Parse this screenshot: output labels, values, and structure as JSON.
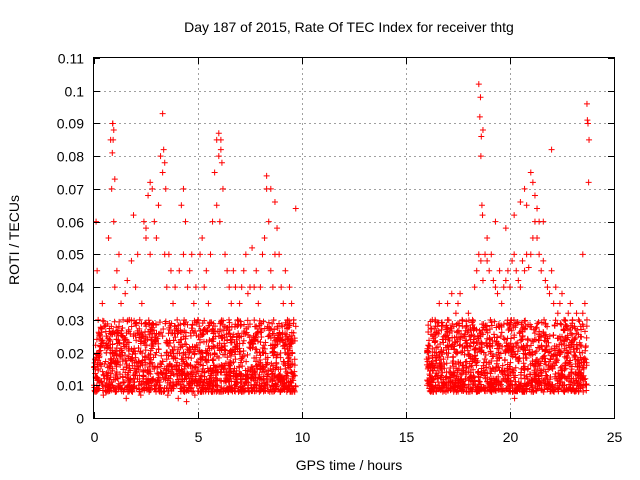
{
  "chart_data": {
    "type": "scatter",
    "title": "Day 187 of 2015, Rate Of TEC Index for receiver thtg",
    "xlabel": "GPS time / hours",
    "ylabel": "ROTI / TECUs",
    "xlim": [
      0,
      25
    ],
    "ylim": [
      0,
      0.11
    ],
    "xticks": [
      0,
      5,
      10,
      15,
      20,
      25
    ],
    "xtick_labels": [
      "0",
      "5",
      "10",
      "15",
      "20",
      "25"
    ],
    "yticks": [
      0,
      0.01,
      0.02,
      0.03,
      0.04,
      0.05,
      0.06,
      0.07,
      0.08,
      0.09,
      0.1,
      0.11
    ],
    "ytick_labels": [
      "0",
      "0.01",
      "0.02",
      "0.03",
      "0.04",
      "0.05",
      "0.06",
      "0.07",
      "0.08",
      "0.09",
      "0.1",
      "0.11"
    ],
    "grid": true,
    "marker": "+",
    "series": [
      {
        "name": "ROTI",
        "color": "#ff0000",
        "x": [
          0.05,
          0.1,
          0.15,
          0.2,
          0.3,
          0.4,
          0.5,
          0.6,
          0.7,
          0.8,
          0.85,
          0.9,
          0.95,
          1.0,
          1.1,
          1.2,
          1.3,
          1.4,
          1.5,
          1.6,
          1.7,
          1.8,
          1.9,
          2.0,
          2.1,
          2.2,
          2.3,
          2.4,
          2.5,
          2.6,
          2.7,
          2.8,
          2.9,
          3.0,
          3.1,
          3.2,
          3.3,
          3.4,
          3.5,
          3.6,
          3.7,
          3.8,
          3.9,
          4.0,
          4.1,
          4.2,
          4.3,
          4.4,
          4.5,
          4.6,
          4.7,
          4.8,
          4.9,
          5.0,
          5.1,
          5.2,
          5.3,
          5.4,
          5.5,
          5.6,
          5.7,
          5.8,
          5.9,
          6.0,
          6.1,
          6.2,
          6.3,
          6.4,
          6.5,
          6.6,
          6.7,
          6.8,
          6.9,
          7.0,
          7.1,
          7.2,
          7.3,
          7.4,
          7.5,
          7.6,
          7.7,
          7.8,
          7.9,
          8.0,
          8.1,
          8.2,
          8.3,
          8.4,
          8.5,
          8.6,
          8.7,
          8.8,
          8.9,
          9.0,
          9.1,
          9.2,
          9.3,
          9.4,
          9.5,
          9.6,
          9.7,
          0.2,
          0.5,
          0.8,
          1.1,
          1.4,
          1.7,
          2.0,
          2.3,
          2.6,
          2.9,
          3.2,
          3.5,
          3.8,
          4.1,
          4.4,
          4.7,
          5.0,
          5.3,
          5.6,
          5.9,
          6.2,
          6.5,
          6.8,
          7.1,
          7.4,
          7.7,
          8.0,
          8.3,
          8.6,
          8.9,
          9.2,
          9.5,
          0.3,
          0.6,
          0.9,
          1.2,
          1.5,
          1.8,
          2.1,
          2.4,
          2.7,
          3.0,
          3.3,
          3.6,
          3.9,
          4.2,
          4.5,
          4.8,
          5.1,
          5.4,
          5.7,
          6.0,
          6.3,
          6.6,
          6.9,
          7.2,
          7.5,
          7.8,
          8.1,
          8.4,
          8.7,
          9.0,
          9.3,
          9.6,
          0.9,
          0.95,
          0.92,
          0.88,
          1.0,
          3.3,
          3.35,
          3.4,
          3.45,
          5.9,
          6.0,
          6.1,
          6.15,
          6.05,
          8.3,
          8.5,
          8.7,
          9.7,
          2.7,
          4.3,
          1.9,
          2.5,
          0.0,
          0.1,
          0.15,
          0.25,
          0.35,
          0.45,
          0.55,
          0.65,
          0.75,
          1.05,
          1.15,
          1.25,
          1.35,
          1.45,
          1.55,
          1.65,
          1.75,
          1.85,
          1.95,
          2.05,
          2.15,
          2.25,
          2.35,
          2.45,
          2.55,
          2.65,
          2.75,
          2.85,
          2.95,
          3.05,
          3.15,
          3.25,
          3.55,
          3.65,
          3.75,
          3.85,
          3.95,
          4.05,
          4.15,
          4.25,
          4.35,
          4.45,
          4.55,
          4.65,
          4.75,
          4.85,
          4.95,
          5.05,
          5.15,
          5.25,
          5.35,
          5.45,
          5.55,
          5.65,
          5.75,
          5.85,
          6.25,
          6.35,
          6.45,
          6.55,
          6.65,
          6.75,
          6.85,
          6.95,
          7.05,
          7.15,
          7.25,
          7.35,
          7.45,
          7.55,
          7.65,
          7.75,
          7.85,
          7.95,
          8.05,
          8.15,
          8.25,
          8.35,
          8.45,
          8.55,
          8.65,
          8.75,
          8.85,
          8.95,
          9.05,
          9.15,
          9.25,
          9.35,
          9.45,
          9.55,
          9.65,
          16.0,
          16.1,
          16.2,
          16.3,
          16.4,
          16.5,
          16.6,
          16.7,
          16.8,
          16.9,
          17.0,
          17.1,
          17.2,
          17.3,
          17.4,
          17.5,
          17.6,
          17.7,
          17.8,
          17.9,
          18.0,
          18.1,
          18.2,
          18.3,
          18.4,
          18.5,
          18.6,
          18.7,
          18.8,
          18.9,
          19.0,
          19.1,
          19.2,
          19.3,
          19.4,
          19.5,
          19.6,
          19.7,
          19.8,
          19.9,
          20.0,
          20.1,
          20.2,
          20.3,
          20.4,
          20.5,
          20.6,
          20.7,
          20.8,
          20.9,
          21.0,
          21.1,
          21.2,
          21.3,
          21.4,
          21.5,
          21.6,
          21.7,
          21.8,
          21.9,
          22.0,
          22.1,
          22.2,
          22.3,
          22.4,
          22.5,
          22.6,
          22.7,
          22.8,
          22.9,
          23.0,
          23.1,
          23.2,
          23.3,
          23.4,
          23.5,
          23.6,
          23.7,
          16.05,
          16.35,
          16.65,
          16.95,
          17.25,
          17.55,
          17.85,
          18.15,
          18.45,
          18.75,
          19.05,
          19.35,
          19.65,
          19.95,
          20.25,
          20.55,
          20.85,
          21.15,
          21.45,
          21.75,
          22.05,
          22.35,
          22.65,
          22.95,
          23.25,
          23.55,
          16.15,
          16.45,
          16.75,
          17.05,
          17.35,
          17.65,
          17.95,
          18.25,
          18.55,
          18.85,
          19.15,
          19.45,
          19.75,
          20.05,
          20.35,
          20.65,
          20.95,
          21.25,
          21.55,
          21.85,
          22.15,
          22.45,
          22.75,
          23.05,
          23.35,
          23.65,
          18.5,
          18.55,
          18.6,
          18.65,
          18.7,
          18.58,
          18.62,
          18.68,
          23.7,
          23.75,
          23.8,
          23.72,
          23.78,
          22.0,
          23.5,
          21.0,
          21.1,
          21.2,
          20.7,
          20.8,
          21.3,
          21.4,
          17.0,
          17.2,
          18.9,
          19.3,
          19.8,
          20.2,
          20.5,
          21.6,
          16.02,
          16.12,
          16.22,
          16.32,
          16.42,
          16.52,
          16.62,
          16.72,
          16.82,
          16.92,
          17.02,
          17.12,
          17.22,
          17.32,
          17.42,
          17.52,
          17.62,
          17.72,
          17.82,
          17.92,
          18.02,
          18.12,
          18.22,
          18.32,
          18.42,
          18.72,
          18.82,
          18.92,
          19.02,
          19.12,
          19.22,
          19.32,
          19.42,
          19.52,
          19.62,
          19.72,
          19.82,
          19.92,
          20.02,
          20.12,
          20.22,
          20.32,
          20.42,
          20.52,
          20.62,
          20.72,
          20.82,
          20.92,
          21.02,
          21.12,
          21.22,
          21.32,
          21.42,
          21.52,
          21.62,
          21.72,
          21.82,
          21.92,
          22.02,
          22.12,
          22.22,
          22.32,
          22.42,
          22.52,
          22.62,
          22.72,
          22.82,
          22.92,
          23.02,
          23.12,
          23.22,
          23.32,
          23.42,
          23.52,
          23.62
        ],
        "y": [
          0.018,
          0.06,
          0.045,
          0.03,
          0.025,
          0.035,
          0.028,
          0.022,
          0.055,
          0.085,
          0.07,
          0.09,
          0.06,
          0.04,
          0.045,
          0.05,
          0.035,
          0.03,
          0.038,
          0.042,
          0.03,
          0.048,
          0.025,
          0.04,
          0.05,
          0.03,
          0.035,
          0.06,
          0.055,
          0.068,
          0.05,
          0.07,
          0.06,
          0.055,
          0.065,
          0.08,
          0.075,
          0.05,
          0.04,
          0.05,
          0.045,
          0.035,
          0.04,
          0.03,
          0.045,
          0.065,
          0.05,
          0.06,
          0.04,
          0.045,
          0.05,
          0.035,
          0.04,
          0.03,
          0.05,
          0.055,
          0.04,
          0.045,
          0.035,
          0.05,
          0.06,
          0.075,
          0.065,
          0.08,
          0.085,
          0.07,
          0.05,
          0.045,
          0.04,
          0.035,
          0.045,
          0.04,
          0.03,
          0.035,
          0.04,
          0.045,
          0.05,
          0.038,
          0.04,
          0.052,
          0.04,
          0.045,
          0.035,
          0.04,
          0.05,
          0.055,
          0.07,
          0.06,
          0.045,
          0.04,
          0.05,
          0.058,
          0.05,
          0.04,
          0.035,
          0.045,
          0.03,
          0.04,
          0.035,
          0.03,
          0.028,
          0.015,
          0.012,
          0.018,
          0.014,
          0.011,
          0.016,
          0.013,
          0.017,
          0.012,
          0.015,
          0.014,
          0.018,
          0.011,
          0.016,
          0.013,
          0.012,
          0.017,
          0.014,
          0.015,
          0.012,
          0.016,
          0.013,
          0.018,
          0.011,
          0.015,
          0.014,
          0.017,
          0.012,
          0.016,
          0.013,
          0.015,
          0.014,
          0.022,
          0.025,
          0.02,
          0.028,
          0.024,
          0.021,
          0.026,
          0.023,
          0.027,
          0.02,
          0.025,
          0.022,
          0.028,
          0.024,
          0.021,
          0.026,
          0.023,
          0.02,
          0.027,
          0.025,
          0.022,
          0.024,
          0.021,
          0.026,
          0.023,
          0.028,
          0.02,
          0.025,
          0.022,
          0.024,
          0.021,
          0.026,
          0.09,
          0.088,
          0.085,
          0.081,
          0.073,
          0.093,
          0.082,
          0.078,
          0.07,
          0.085,
          0.087,
          0.082,
          0.078,
          0.06,
          0.074,
          0.07,
          0.066,
          0.064,
          0.072,
          0.07,
          0.062,
          0.058,
          0.01,
          0.008,
          0.012,
          0.009,
          0.011,
          0.007,
          0.01,
          0.013,
          0.009,
          0.008,
          0.012,
          0.01,
          0.009,
          0.011,
          0.006,
          0.01,
          0.012,
          0.008,
          0.011,
          0.009,
          0.01,
          0.007,
          0.012,
          0.009,
          0.011,
          0.008,
          0.01,
          0.012,
          0.009,
          0.011,
          0.01,
          0.008,
          0.007,
          0.012,
          0.009,
          0.01,
          0.011,
          0.006,
          0.009,
          0.012,
          0.008,
          0.005,
          0.01,
          0.009,
          0.011,
          0.007,
          0.01,
          0.012,
          0.008,
          0.011,
          0.009,
          0.01,
          0.012,
          0.008,
          0.011,
          0.01,
          0.009,
          0.011,
          0.008,
          0.012,
          0.009,
          0.01,
          0.011,
          0.008,
          0.012,
          0.009,
          0.01,
          0.011,
          0.008,
          0.009,
          0.012,
          0.01,
          0.011,
          0.008,
          0.009,
          0.012,
          0.01,
          0.011,
          0.008,
          0.01,
          0.012,
          0.009,
          0.011,
          0.008,
          0.01,
          0.009,
          0.012,
          0.01,
          0.011,
          0.009,
          0.008,
          0.018,
          0.022,
          0.016,
          0.025,
          0.03,
          0.028,
          0.035,
          0.02,
          0.018,
          0.024,
          0.03,
          0.026,
          0.022,
          0.028,
          0.032,
          0.035,
          0.038,
          0.03,
          0.025,
          0.028,
          0.032,
          0.027,
          0.03,
          0.04,
          0.045,
          0.05,
          0.048,
          0.042,
          0.05,
          0.048,
          0.045,
          0.05,
          0.042,
          0.04,
          0.038,
          0.045,
          0.035,
          0.04,
          0.042,
          0.045,
          0.04,
          0.048,
          0.05,
          0.045,
          0.042,
          0.04,
          0.048,
          0.045,
          0.05,
          0.046,
          0.05,
          0.055,
          0.06,
          0.055,
          0.05,
          0.045,
          0.048,
          0.042,
          0.04,
          0.038,
          0.045,
          0.035,
          0.04,
          0.032,
          0.035,
          0.038,
          0.03,
          0.028,
          0.032,
          0.035,
          0.03,
          0.028,
          0.032,
          0.03,
          0.028,
          0.032,
          0.035,
          0.03,
          0.015,
          0.012,
          0.016,
          0.014,
          0.013,
          0.015,
          0.012,
          0.016,
          0.014,
          0.013,
          0.015,
          0.012,
          0.016,
          0.014,
          0.013,
          0.015,
          0.012,
          0.016,
          0.014,
          0.013,
          0.015,
          0.012,
          0.016,
          0.014,
          0.013,
          0.015,
          0.022,
          0.02,
          0.024,
          0.021,
          0.023,
          0.02,
          0.022,
          0.024,
          0.021,
          0.023,
          0.022,
          0.02,
          0.024,
          0.021,
          0.023,
          0.022,
          0.02,
          0.024,
          0.021,
          0.023,
          0.022,
          0.02,
          0.024,
          0.021,
          0.023,
          0.022,
          0.102,
          0.092,
          0.08,
          0.065,
          0.088,
          0.098,
          0.086,
          0.062,
          0.096,
          0.09,
          0.085,
          0.091,
          0.072,
          0.082,
          0.05,
          0.075,
          0.072,
          0.068,
          0.07,
          0.065,
          0.064,
          0.06,
          0.035,
          0.038,
          0.055,
          0.06,
          0.058,
          0.062,
          0.066,
          0.06,
          0.01,
          0.009,
          0.011,
          0.008,
          0.01,
          0.012,
          0.009,
          0.011,
          0.01,
          0.008,
          0.012,
          0.009,
          0.011,
          0.01,
          0.008,
          0.012,
          0.009,
          0.011,
          0.01,
          0.008,
          0.012,
          0.009,
          0.011,
          0.01,
          0.008,
          0.009,
          0.012,
          0.011,
          0.01,
          0.008,
          0.012,
          0.009,
          0.011,
          0.01,
          0.008,
          0.012,
          0.009,
          0.011,
          0.01,
          0.008,
          0.006,
          0.009,
          0.011,
          0.01,
          0.008,
          0.012,
          0.009,
          0.011,
          0.01,
          0.008,
          0.012,
          0.009,
          0.011,
          0.01,
          0.008,
          0.012,
          0.009,
          0.011,
          0.01,
          0.008,
          0.012,
          0.009,
          0.011,
          0.01,
          0.008,
          0.012,
          0.009,
          0.011,
          0.01,
          0.008,
          0.009,
          0.011,
          0.01,
          0.008,
          0.012
        ]
      }
    ],
    "clusters": [
      {
        "x_range": [
          0.0,
          9.7
        ],
        "y_range": [
          0.008,
          0.03
        ]
      },
      {
        "x_range": [
          16.0,
          23.7
        ],
        "y_range": [
          0.008,
          0.03
        ]
      }
    ]
  }
}
